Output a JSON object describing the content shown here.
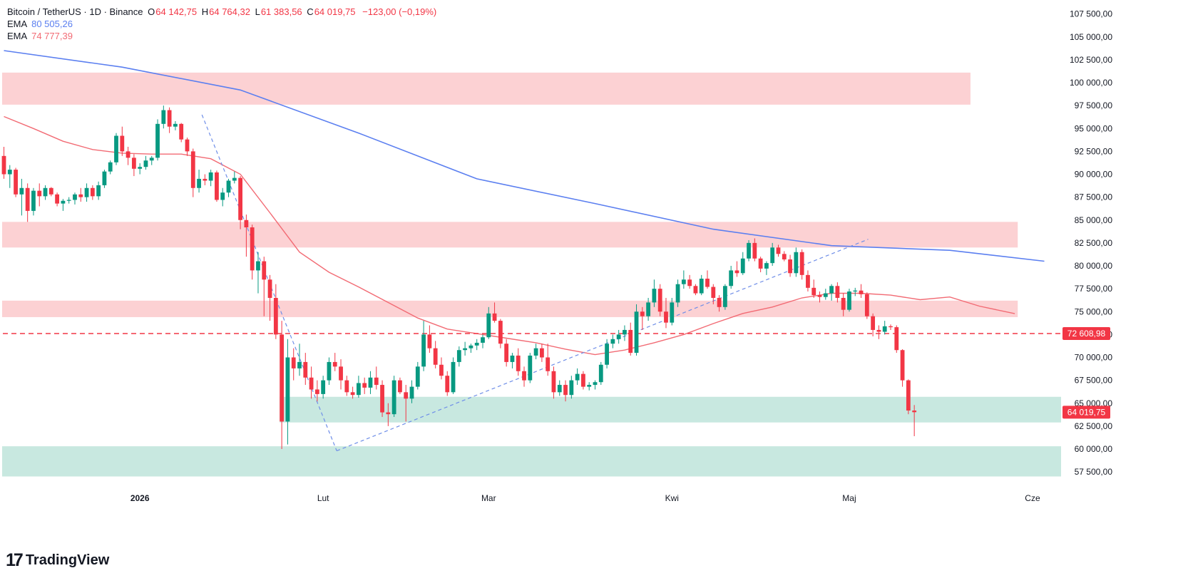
{
  "legend": {
    "symbol": "Bitcoin / TetherUS · 1D · Binance",
    "open_label": "O",
    "open": "64 142,75",
    "high_label": "H",
    "high": "64 764,32",
    "low_label": "L",
    "low": "61 383,56",
    "close_label": "C",
    "close": "64 019,75",
    "change": "−123,00 (−0,19%)",
    "ema1_label": "EMA",
    "ema1_value": "80 505,26",
    "ema1_color": "#5b7ff0",
    "ema2_label": "EMA",
    "ema2_value": "74 777,39",
    "ema2_color": "#f26b74"
  },
  "brand": {
    "logo_mark": "17",
    "name": "TradingView"
  },
  "colors": {
    "up": "#089981",
    "down": "#f23645",
    "zone_red": "#fcd1d3",
    "zone_green": "#c8e8e0",
    "hline": "#f23645"
  },
  "chart_data": {
    "type": "candlestick",
    "y_range": [
      56000,
      108500
    ],
    "y_ticks": [
      57500,
      60000,
      62500,
      65000,
      67500,
      70000,
      72500,
      75000,
      77500,
      80000,
      82500,
      85000,
      87500,
      90000,
      92500,
      95000,
      97500,
      100000,
      102500,
      105000,
      107500
    ],
    "y_tick_labels": [
      "57 500,00",
      "60 000,00",
      "62 500,00",
      "65 000,00",
      "67 500,00",
      "70 000,00",
      "72 500,00",
      "75 000,00",
      "77 500,00",
      "80 000,00",
      "82 500,00",
      "85 000,00",
      "87 500,00",
      "90 000,00",
      "92 500,00",
      "95 000,00",
      "97 500,00",
      "100 000,00",
      "102 500,00",
      "105 000,00",
      "107 500,00"
    ],
    "x_labels": [
      {
        "bar": 23,
        "label": "2026",
        "bold": true
      },
      {
        "bar": 54,
        "label": "Lut"
      },
      {
        "bar": 82,
        "label": "Mar"
      },
      {
        "bar": 113,
        "label": "Kwi"
      },
      {
        "bar": 143,
        "label": "Maj"
      },
      {
        "bar": 174,
        "label": "Cze"
      }
    ],
    "candles": [
      [
        92000,
        93000,
        89500,
        90000
      ],
      [
        90000,
        91000,
        88500,
        90500
      ],
      [
        90500,
        90700,
        87500,
        87800
      ],
      [
        87800,
        89500,
        85500,
        88500
      ],
      [
        88500,
        89000,
        84800,
        86000
      ],
      [
        86000,
        88500,
        85500,
        88200
      ],
      [
        88200,
        89000,
        86500,
        87600
      ],
      [
        87600,
        88800,
        87200,
        88500
      ],
      [
        88500,
        88600,
        87600,
        87800
      ],
      [
        87800,
        88000,
        86500,
        86800
      ],
      [
        86800,
        87300,
        86000,
        87100
      ],
      [
        87100,
        87500,
        86800,
        87200
      ],
      [
        87200,
        88000,
        86700,
        87800
      ],
      [
        87800,
        88500,
        87000,
        87500
      ],
      [
        87500,
        89000,
        87000,
        88500
      ],
      [
        88500,
        88800,
        87200,
        87600
      ],
      [
        87600,
        89200,
        87200,
        88800
      ],
      [
        88800,
        90500,
        88500,
        90300
      ],
      [
        90300,
        91500,
        90000,
        91300
      ],
      [
        91300,
        94500,
        91000,
        94200
      ],
      [
        94200,
        95200,
        92000,
        92500
      ],
      [
        92500,
        93000,
        91000,
        91800
      ],
      [
        91800,
        92200,
        89800,
        90600
      ],
      [
        90600,
        91200,
        90000,
        90800
      ],
      [
        90800,
        92000,
        90500,
        91500
      ],
      [
        91500,
        92000,
        91000,
        91800
      ],
      [
        91800,
        96000,
        91500,
        95500
      ],
      [
        95500,
        97500,
        95000,
        97000
      ],
      [
        97000,
        97300,
        94500,
        95200
      ],
      [
        95200,
        95800,
        94800,
        95500
      ],
      [
        95500,
        95600,
        93500,
        93800
      ],
      [
        93800,
        94000,
        92000,
        92500
      ],
      [
        92500,
        92800,
        87500,
        88500
      ],
      [
        88500,
        90500,
        88000,
        89500
      ],
      [
        89500,
        90000,
        88800,
        89300
      ],
      [
        89300,
        90500,
        88700,
        90200
      ],
      [
        90200,
        90400,
        87000,
        87200
      ],
      [
        87200,
        88500,
        86500,
        88000
      ],
      [
        88000,
        89500,
        87500,
        89300
      ],
      [
        89300,
        90300,
        89000,
        89600
      ],
      [
        89600,
        89800,
        84000,
        85000
      ],
      [
        85000,
        85600,
        81000,
        84200
      ],
      [
        84200,
        84500,
        78500,
        79500
      ],
      [
        79500,
        81500,
        77000,
        80500
      ],
      [
        80500,
        81000,
        74500,
        78500
      ],
      [
        78500,
        79000,
        74000,
        76500
      ],
      [
        76500,
        78000,
        72000,
        72500
      ],
      [
        72500,
        74000,
        60000,
        63000
      ],
      [
        63000,
        72000,
        60500,
        70000
      ],
      [
        70000,
        71000,
        67500,
        68800
      ],
      [
        68800,
        71500,
        68000,
        69500
      ],
      [
        69500,
        70500,
        67000,
        67800
      ],
      [
        67800,
        69000,
        65500,
        66500
      ],
      [
        66500,
        67500,
        65200,
        66000
      ],
      [
        66000,
        68000,
        65500,
        67500
      ],
      [
        67500,
        70000,
        67000,
        69500
      ],
      [
        69500,
        70500,
        68500,
        69000
      ],
      [
        69000,
        69800,
        66500,
        67500
      ],
      [
        67500,
        68000,
        65800,
        66200
      ],
      [
        66200,
        66800,
        65500,
        65900
      ],
      [
        65900,
        68000,
        65600,
        67200
      ],
      [
        67200,
        67800,
        66000,
        66700
      ],
      [
        66700,
        68500,
        66000,
        67800
      ],
      [
        67800,
        69000,
        66500,
        67000
      ],
      [
        67000,
        67500,
        63500,
        64000
      ],
      [
        64000,
        65000,
        62500,
        63800
      ],
      [
        63800,
        68000,
        63500,
        67500
      ],
      [
        67500,
        67800,
        66000,
        66200
      ],
      [
        66200,
        67000,
        63000,
        65500
      ],
      [
        65500,
        67500,
        65000,
        66800
      ],
      [
        66800,
        69500,
        66500,
        69000
      ],
      [
        69000,
        74000,
        68500,
        72500
      ],
      [
        72500,
        73500,
        70500,
        71000
      ],
      [
        71000,
        71800,
        68800,
        69200
      ],
      [
        69200,
        70000,
        67600,
        68000
      ],
      [
        68000,
        68500,
        65800,
        66200
      ],
      [
        66200,
        70000,
        66000,
        69500
      ],
      [
        69500,
        71200,
        69000,
        70800
      ],
      [
        70800,
        71700,
        70200,
        71000
      ],
      [
        71000,
        71500,
        70500,
        71300
      ],
      [
        71300,
        72000,
        70800,
        71600
      ],
      [
        71600,
        72500,
        71000,
        72200
      ],
      [
        72200,
        75500,
        72000,
        74800
      ],
      [
        74800,
        76000,
        73800,
        74000
      ],
      [
        74000,
        74200,
        71000,
        71500
      ],
      [
        71500,
        72000,
        69000,
        69500
      ],
      [
        69500,
        70500,
        68800,
        70200
      ],
      [
        70200,
        71000,
        68000,
        68500
      ],
      [
        68500,
        69000,
        66800,
        67500
      ],
      [
        67500,
        70500,
        67200,
        70200
      ],
      [
        70200,
        71500,
        69800,
        71000
      ],
      [
        71000,
        71500,
        69500,
        70000
      ],
      [
        70000,
        71500,
        68000,
        68500
      ],
      [
        68500,
        69000,
        65500,
        66200
      ],
      [
        66200,
        67500,
        65800,
        67000
      ],
      [
        67000,
        67500,
        65200,
        65900
      ],
      [
        65900,
        68000,
        65500,
        67500
      ],
      [
        67500,
        68800,
        67000,
        68200
      ],
      [
        68200,
        68500,
        66500,
        66800
      ],
      [
        66800,
        67300,
        66400,
        67000
      ],
      [
        67000,
        67500,
        66500,
        67300
      ],
      [
        67300,
        69500,
        67000,
        69200
      ],
      [
        69200,
        72000,
        68800,
        71500
      ],
      [
        71500,
        72500,
        71000,
        72000
      ],
      [
        72000,
        73000,
        71500,
        72500
      ],
      [
        72500,
        73500,
        71800,
        73000
      ],
      [
        73000,
        73800,
        70200,
        70500
      ],
      [
        70500,
        75800,
        70200,
        75000
      ],
      [
        75000,
        75500,
        73000,
        74500
      ],
      [
        74500,
        76500,
        74000,
        76000
      ],
      [
        76000,
        78500,
        75500,
        77500
      ],
      [
        77500,
        78000,
        74500,
        75000
      ],
      [
        75000,
        76500,
        73200,
        73800
      ],
      [
        73800,
        76500,
        73500,
        76000
      ],
      [
        76000,
        78500,
        75500,
        78000
      ],
      [
        78000,
        79500,
        77500,
        78500
      ],
      [
        78500,
        79000,
        77500,
        77800
      ],
      [
        77800,
        78000,
        76800,
        77000
      ],
      [
        77000,
        79000,
        76800,
        78600
      ],
      [
        78600,
        79500,
        77500,
        77700
      ],
      [
        77700,
        78000,
        75800,
        76500
      ],
      [
        76500,
        76800,
        75000,
        75500
      ],
      [
        75500,
        78000,
        75200,
        77800
      ],
      [
        77800,
        80000,
        77500,
        79500
      ],
      [
        79500,
        80500,
        78800,
        79200
      ],
      [
        79200,
        81500,
        79000,
        80800
      ],
      [
        80800,
        82800,
        80500,
        82500
      ],
      [
        82500,
        83000,
        80500,
        80800
      ],
      [
        80800,
        81000,
        79300,
        79700
      ],
      [
        79700,
        80500,
        79000,
        80300
      ],
      [
        80300,
        82500,
        80000,
        82000
      ],
      [
        82000,
        82300,
        81000,
        81300
      ],
      [
        81300,
        81600,
        80500,
        80700
      ],
      [
        80700,
        81200,
        78800,
        79200
      ],
      [
        79200,
        82000,
        78800,
        81500
      ],
      [
        81500,
        81800,
        78500,
        79000
      ],
      [
        79000,
        79500,
        77200,
        77600
      ],
      [
        77600,
        78500,
        76500,
        76800
      ],
      [
        76800,
        77200,
        76000,
        76600
      ],
      [
        76600,
        77500,
        76300,
        77000
      ],
      [
        77000,
        78000,
        76200,
        77800
      ],
      [
        77800,
        78200,
        76000,
        76500
      ],
      [
        76500,
        77000,
        74500,
        75200
      ],
      [
        75200,
        77500,
        75000,
        77200
      ],
      [
        77200,
        77600,
        76700,
        77300
      ],
      [
        77300,
        78000,
        76500,
        76900
      ],
      [
        76900,
        77100,
        74200,
        74500
      ],
      [
        74500,
        74800,
        72300,
        73000
      ],
      [
        73000,
        73500,
        72000,
        72800
      ],
      [
        72800,
        74000,
        72500,
        73400
      ],
      [
        73400,
        73600,
        73000,
        73300
      ],
      [
        73300,
        73500,
        70500,
        70800
      ],
      [
        70800,
        70900,
        66800,
        67500
      ],
      [
        67500,
        67600,
        63800,
        64200
      ],
      [
        64200,
        64800,
        61400,
        64020
      ]
    ],
    "ema_long": [
      [
        0,
        103500
      ],
      [
        20,
        101700
      ],
      [
        40,
        99200
      ],
      [
        60,
        94500
      ],
      [
        80,
        89500
      ],
      [
        100,
        86800
      ],
      [
        120,
        84000
      ],
      [
        140,
        82200
      ],
      [
        160,
        81700
      ],
      [
        176,
        80505
      ]
    ],
    "ema_short": [
      [
        0,
        96300
      ],
      [
        5,
        95000
      ],
      [
        10,
        93600
      ],
      [
        15,
        92700
      ],
      [
        20,
        92300
      ],
      [
        25,
        92200
      ],
      [
        30,
        92200
      ],
      [
        35,
        91700
      ],
      [
        40,
        90000
      ],
      [
        45,
        85800
      ],
      [
        50,
        81500
      ],
      [
        55,
        79300
      ],
      [
        60,
        77700
      ],
      [
        65,
        76000
      ],
      [
        70,
        74300
      ],
      [
        75,
        73100
      ],
      [
        80,
        72600
      ],
      [
        85,
        72100
      ],
      [
        90,
        71600
      ],
      [
        95,
        70900
      ],
      [
        100,
        70300
      ],
      [
        105,
        70800
      ],
      [
        110,
        71600
      ],
      [
        115,
        72500
      ],
      [
        120,
        73700
      ],
      [
        125,
        74800
      ],
      [
        130,
        75500
      ],
      [
        135,
        76500
      ],
      [
        140,
        77000
      ],
      [
        145,
        77000
      ],
      [
        150,
        76800
      ],
      [
        155,
        76300
      ],
      [
        160,
        76600
      ],
      [
        165,
        75600
      ],
      [
        171,
        74777
      ]
    ],
    "zones": [
      {
        "from_bar": 0,
        "to_bar": 163.5,
        "low": 97600,
        "high": 101100,
        "color": "red"
      },
      {
        "from_bar": 0,
        "to_bar": 171.5,
        "low": 82000,
        "high": 84800,
        "color": "red"
      },
      {
        "from_bar": 0,
        "to_bar": 171.5,
        "low": 74400,
        "high": 76200,
        "color": "red"
      },
      {
        "from_bar": 47,
        "to_bar": 180,
        "low": 62900,
        "high": 65700,
        "color": "green"
      },
      {
        "from_bar": 0,
        "to_bar": 180,
        "low": 57000,
        "high": 60300,
        "color": "green"
      }
    ],
    "trendlines": [
      {
        "from": [
          33.5,
          96500
        ],
        "to": [
          56.3,
          59800
        ]
      },
      {
        "from": [
          56.3,
          59800
        ],
        "to": [
          146.2,
          82900
        ]
      }
    ],
    "hline": {
      "value": 72608.98,
      "label": "72 608,98"
    },
    "last_price": {
      "value": 64019.75,
      "label": "64 019,75"
    }
  }
}
